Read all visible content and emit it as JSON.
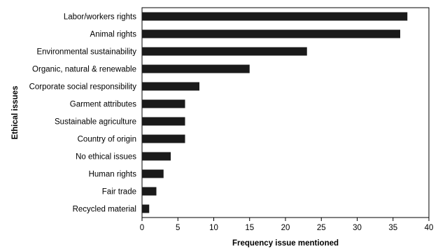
{
  "chart_data": {
    "type": "bar",
    "orientation": "horizontal",
    "categories": [
      "Labor/workers rights",
      "Animal rights",
      "Environmental sustainability",
      "Organic, natural & renewable",
      "Corporate social responsibility",
      "Garment attributes",
      "Sustainable agriculture",
      "Country of origin",
      "No ethical issues",
      "Human rights",
      "Fair trade",
      "Recycled material"
    ],
    "values": [
      37,
      36,
      23,
      15,
      8,
      6,
      6,
      6,
      4,
      3,
      2,
      1
    ],
    "xlabel": "Frequency issue mentioned",
    "ylabel": "Ethical issues",
    "xlim": [
      0,
      40
    ],
    "xticks": [
      0,
      5,
      10,
      15,
      20,
      25,
      30,
      35,
      40
    ],
    "grid": false,
    "legend": "none",
    "colors": {
      "bar": "#1a1a1a",
      "axis": "#000000",
      "frame": "#000000"
    }
  }
}
